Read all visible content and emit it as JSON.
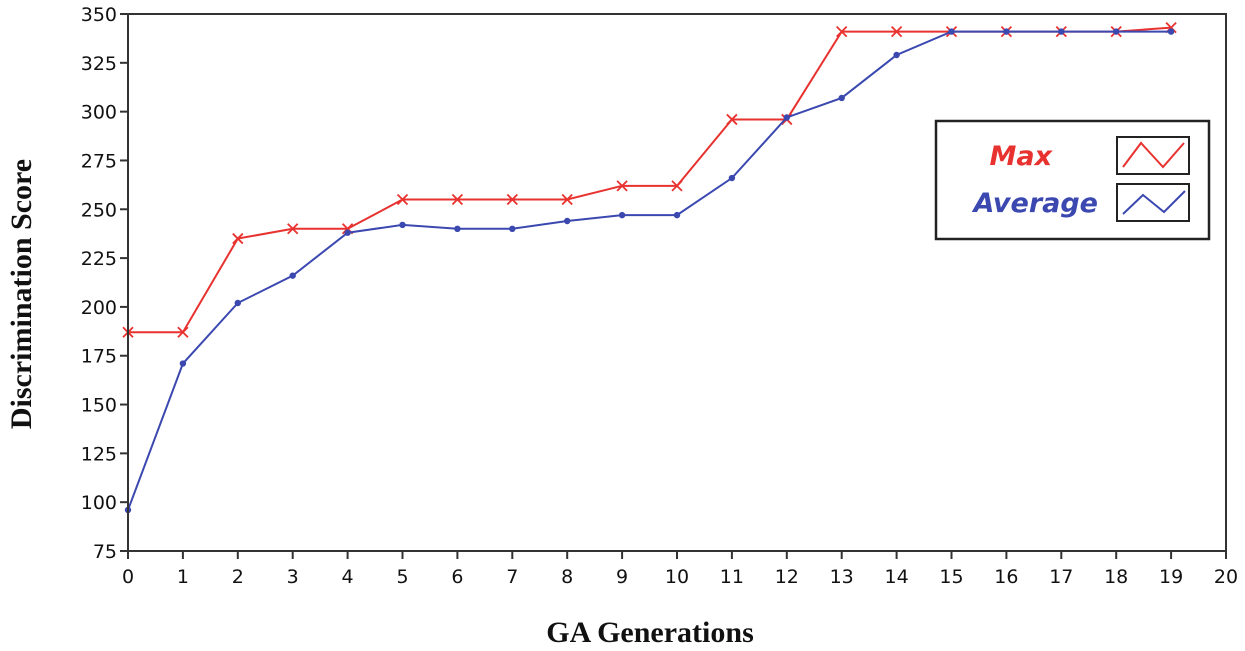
{
  "chart_data": {
    "type": "line",
    "title": "",
    "xlabel": "GA Generations",
    "ylabel": "Discrimination Score",
    "x": [
      0,
      1,
      2,
      3,
      4,
      5,
      6,
      7,
      8,
      9,
      10,
      11,
      12,
      13,
      14,
      15,
      16,
      17,
      18,
      19
    ],
    "xlim": [
      0,
      20
    ],
    "ylim": [
      75,
      350
    ],
    "xticks": [
      "0",
      "1",
      "2",
      "3",
      "4",
      "5",
      "6",
      "7",
      "8",
      "9",
      "10",
      "11",
      "12",
      "13",
      "14",
      "15",
      "16",
      "17",
      "18",
      "19",
      "20"
    ],
    "yticks": [
      "350",
      "325",
      "300",
      "275",
      "250",
      "225",
      "200",
      "175",
      "150",
      "125",
      "100",
      "75"
    ],
    "grid": false,
    "legend_position": "right",
    "series": [
      {
        "name": "Max",
        "color": "#e8322f",
        "marker": "x",
        "values": [
          187,
          187,
          235,
          240,
          240,
          255,
          255,
          255,
          255,
          262,
          262,
          296,
          296,
          341,
          341,
          341,
          341,
          341,
          341,
          343
        ]
      },
      {
        "name": "Average",
        "color": "#3a48b0",
        "marker": "dot",
        "values": [
          96,
          171,
          202,
          216,
          238,
          242,
          240,
          240,
          244,
          247,
          247,
          266,
          297,
          307,
          329,
          341,
          341,
          341,
          341,
          341
        ]
      }
    ]
  }
}
